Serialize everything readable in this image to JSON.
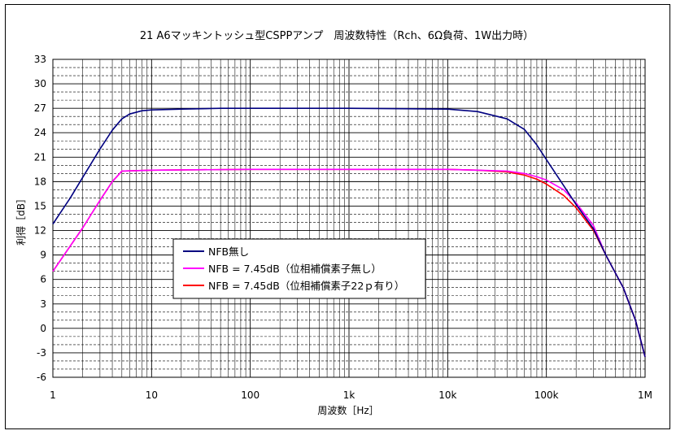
{
  "chart_data": {
    "type": "line",
    "title": "21 A6マッキントッシュ型CSPPアンプ　周波数特性（Rch、6Ω負荷、1W出力時）",
    "xlabel": "周波数［Hz］",
    "ylabel": "利得［dB］",
    "x_scale": "log",
    "xlim": [
      1,
      1000000
    ],
    "ylim": [
      -6,
      33
    ],
    "grid": true,
    "legend_position": "center-left",
    "x_tick_labels": [
      "1",
      "10",
      "100",
      "1k",
      "10k",
      "100k",
      "1M"
    ],
    "y_tick_labels": [
      "33",
      "30",
      "27",
      "24",
      "21",
      "18",
      "15",
      "12",
      "9",
      "6",
      "3",
      "0",
      "-3",
      "-6"
    ],
    "series": [
      {
        "name": "NFB無し",
        "color": "#000080",
        "x": [
          1,
          1.5,
          2,
          3,
          4,
          5,
          6,
          8,
          10,
          20,
          50,
          100,
          1000,
          10000,
          20000,
          40000,
          60000,
          80000,
          100000,
          150000,
          200000,
          300000,
          400000,
          600000,
          800000,
          1000000
        ],
        "y": [
          12.8,
          16.0,
          18.5,
          22.0,
          24.3,
          25.7,
          26.3,
          26.7,
          26.8,
          26.9,
          27.0,
          27.0,
          27.0,
          26.9,
          26.6,
          25.7,
          24.4,
          22.5,
          20.7,
          17.5,
          15.2,
          12.2,
          9.0,
          5.0,
          1.0,
          -3.5
        ]
      },
      {
        "name": "NFB = 7.45dB（位相補償素子無し）",
        "color": "#ff00ff",
        "x": [
          1,
          2,
          3,
          4,
          5,
          10,
          100,
          1000,
          10000,
          20000,
          40000,
          60000,
          80000,
          100000,
          150000,
          200000,
          300000,
          400000,
          600000,
          800000,
          1000000
        ],
        "y": [
          7.0,
          12.3,
          15.7,
          18.0,
          19.3,
          19.4,
          19.5,
          19.5,
          19.5,
          19.4,
          19.3,
          19.0,
          18.6,
          18.2,
          17.0,
          15.4,
          12.6,
          9.0,
          5.0,
          1.0,
          -3.5
        ]
      },
      {
        "name": "NFB = 7.45dB（位相補償素子22ｐ有り）",
        "color": "#ff0000",
        "x": [
          1,
          2,
          3,
          4,
          5,
          10,
          100,
          1000,
          10000,
          20000,
          40000,
          60000,
          80000,
          100000,
          150000,
          200000,
          300000,
          400000,
          600000,
          800000,
          1000000
        ],
        "y": [
          7.0,
          12.3,
          15.7,
          18.0,
          19.3,
          19.4,
          19.5,
          19.5,
          19.5,
          19.4,
          19.2,
          18.8,
          18.3,
          17.7,
          16.3,
          14.8,
          12.0,
          9.0,
          5.0,
          1.0,
          -3.5
        ]
      }
    ]
  }
}
